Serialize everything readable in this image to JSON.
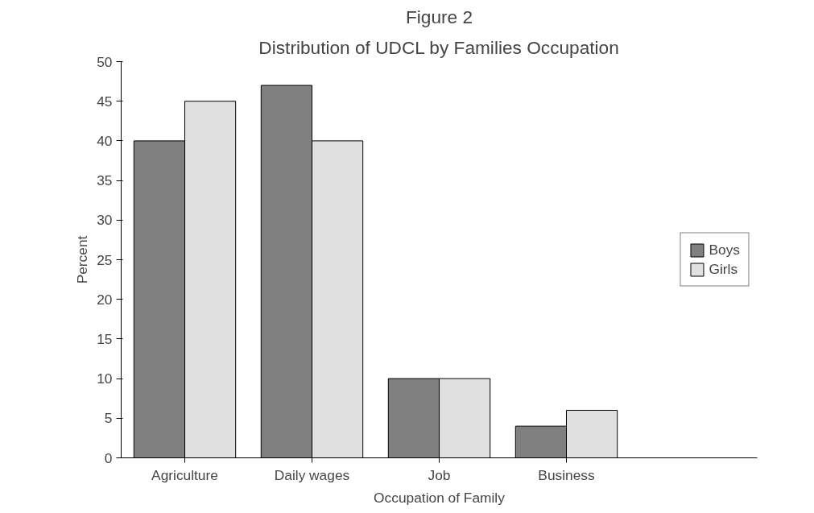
{
  "chart_data": {
    "type": "bar",
    "title": "Figure 2",
    "subtitle": "Distribution of UDCL by Families Occupation",
    "xlabel": "Occupation of Family",
    "ylabel": "Percent",
    "categories": [
      "Agriculture",
      "Daily wages",
      "Job",
      "Business"
    ],
    "series": [
      {
        "name": "Boys",
        "color": "#808080",
        "values": [
          40,
          47,
          10,
          4
        ]
      },
      {
        "name": "Girls",
        "color": "#e0e0e0",
        "values": [
          45,
          40,
          10,
          6
        ]
      }
    ],
    "ylim": [
      0,
      50
    ],
    "yticks": [
      0,
      5,
      10,
      15,
      20,
      25,
      30,
      35,
      40,
      45,
      50
    ],
    "grid": false,
    "legend": "right"
  }
}
